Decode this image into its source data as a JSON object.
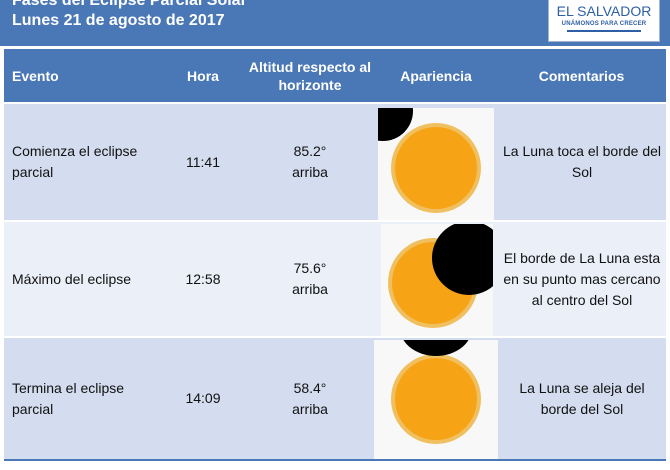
{
  "title": {
    "line1": "Fases del Eclipse Parcial Solar",
    "line2": "Lunes 21 de agosto de 2017"
  },
  "logo": {
    "name": "EL SALVADOR",
    "tagline": "UNÁMONOS PARA CRECER"
  },
  "table": {
    "headers": {
      "event": "Evento",
      "time": "Hora",
      "altitude": "Altitud respecto al horizonte",
      "appearance": "Apariencia",
      "comments": "Comentarios"
    },
    "rows": [
      {
        "event": "Comienza el eclipse parcial",
        "time": "11:41",
        "altitude": "85.2°\narriba",
        "comment": "La Luna toca el borde del Sol",
        "image": "sun-moon-first-contact"
      },
      {
        "event": "Máximo del eclipse",
        "time": "12:58",
        "altitude": "75.6°\narriba",
        "comment": "El borde de La Luna esta en su punto mas cercano al centro del Sol",
        "image": "sun-moon-maximum"
      },
      {
        "event": "Termina el eclipse parcial",
        "time": "14:09",
        "altitude": "58.4°\narriba",
        "comment": "La Luna se aleja del borde del Sol",
        "image": "sun-moon-last-contact"
      }
    ]
  },
  "colors": {
    "header_blue": "#4a78b6",
    "row_dark": "#d3ddef",
    "row_light": "#eaeff8",
    "sun_orange": "#f7a316",
    "sun_rim": "#f0c060",
    "moon": "#000000"
  }
}
